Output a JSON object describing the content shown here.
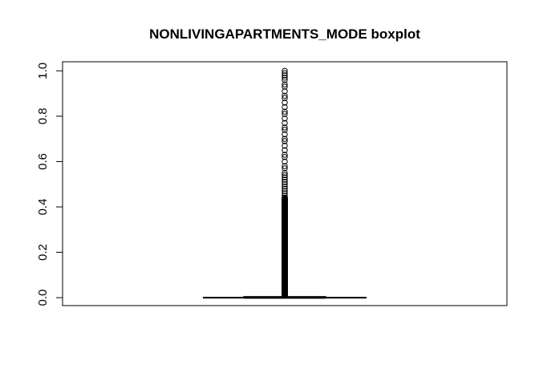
{
  "chart_data": {
    "type": "boxplot",
    "title": "NONLIVINGAPARTMENTS_MODE boxplot",
    "xlabel": "",
    "ylabel": "",
    "ylim": [
      -0.035,
      1.04
    ],
    "yticks": [
      0.0,
      0.2,
      0.4,
      0.6,
      0.8,
      1.0
    ],
    "ytick_labels": [
      "0.0",
      "0.2",
      "0.4",
      "0.6",
      "0.8",
      "1.0"
    ],
    "grid": false,
    "box": {
      "min": 0.0,
      "q1": 0.0,
      "median": 0.001,
      "q3": 0.004,
      "max": 0.01
    },
    "outlier_range_dense": [
      0.01,
      0.44
    ],
    "outliers_sparse": [
      0.45,
      0.46,
      0.47,
      0.48,
      0.49,
      0.5,
      0.51,
      0.52,
      0.53,
      0.54,
      0.55,
      0.57,
      0.58,
      0.6,
      0.62,
      0.63,
      0.65,
      0.67,
      0.69,
      0.7,
      0.72,
      0.74,
      0.75,
      0.77,
      0.79,
      0.81,
      0.82,
      0.84,
      0.86,
      0.88,
      0.89,
      0.91,
      0.93,
      0.94,
      0.96,
      0.97,
      0.98,
      0.99,
      1.0
    ]
  }
}
